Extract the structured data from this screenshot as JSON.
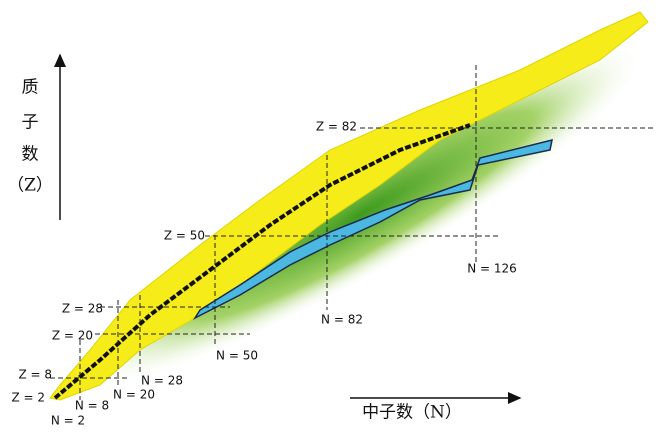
{
  "axes": {
    "y_label": [
      "质",
      "子",
      "数",
      "（Z）"
    ],
    "x_label": "中子数（N）"
  },
  "magic_z": [
    "Z = 2",
    "Z = 8",
    "Z = 20",
    "Z = 28",
    "Z = 50",
    "Z = 82"
  ],
  "magic_n": [
    "N = 2",
    "N = 8",
    "N = 20",
    "N = 28",
    "N = 50",
    "N = 82",
    "N = 126"
  ]
}
